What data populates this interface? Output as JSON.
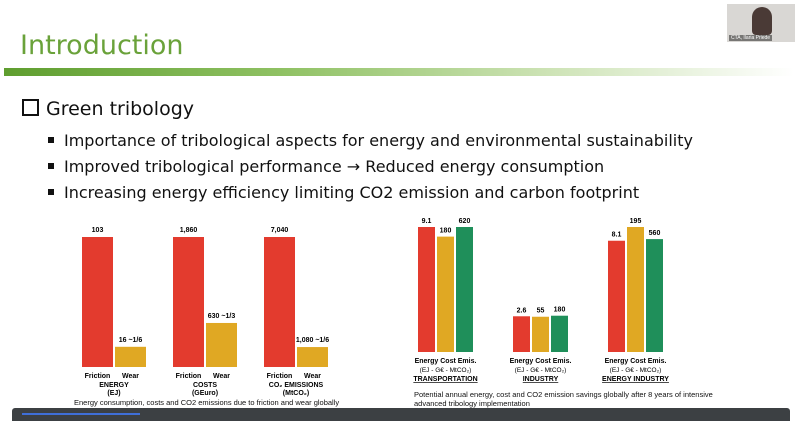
{
  "slide": {
    "title": "Introduction",
    "heading": "Green tribology",
    "bullets": [
      "Importance of tribological aspects for energy and environmental sustainability",
      "Improved tribological performance → Reduced energy consumption",
      "Increasing energy efficiency limiting CO2 emission and carbon footprint"
    ]
  },
  "video": {
    "participant_name": "CTA, Ilaria Priede"
  },
  "colors": {
    "title": "#6aa23a",
    "red": "#e33b2e",
    "gold": "#e0a823",
    "green": "#1f8f5a"
  },
  "chart_data": [
    {
      "type": "bar",
      "categories": [
        "ENERGY\n(EJ)",
        "COSTS\n(GEuro)",
        "CO₂ EMISSIONS\n(MtCO₂)"
      ],
      "series": [
        {
          "name": "Friction",
          "values": [
            103,
            1860,
            7040
          ],
          "labels": [
            "103",
            "1,860",
            "7,040"
          ]
        },
        {
          "name": "Wear",
          "values": [
            16,
            630,
            1080
          ],
          "labels": [
            "16 ~1/6",
            "630 ~1/3",
            "1,080 ~1/6"
          ]
        }
      ],
      "caption": "Energy consumption, costs and CO2 emissions due to friction and wear globally"
    },
    {
      "type": "bar",
      "categories": [
        "TRANSPORTATION",
        "INDUSTRY",
        "ENERGY INDUSTRY"
      ],
      "subheaders": [
        "Energy Cost Emis.",
        "Energy Cost Emis.",
        "Energy Cost Emis."
      ],
      "units": [
        "(EJ - G€ - MtCO₂)",
        "(EJ - G€ - MtCO₂)",
        "(EJ - G€ - MtCO₂)"
      ],
      "series": [
        {
          "name": "Energy",
          "values": [
            9.1,
            2.6,
            8.1
          ],
          "labels": [
            "9.1",
            "2.6",
            "8.1"
          ]
        },
        {
          "name": "Cost",
          "values": [
            180,
            55,
            195
          ],
          "labels": [
            "180",
            "55",
            "195"
          ]
        },
        {
          "name": "Emis.",
          "values": [
            620,
            180,
            560
          ],
          "labels": [
            "620",
            "180",
            "560"
          ]
        }
      ],
      "caption": "Potential annual energy, cost and CO2 emission savings globally after 8 years of intensive advanced tribology implementation"
    }
  ]
}
